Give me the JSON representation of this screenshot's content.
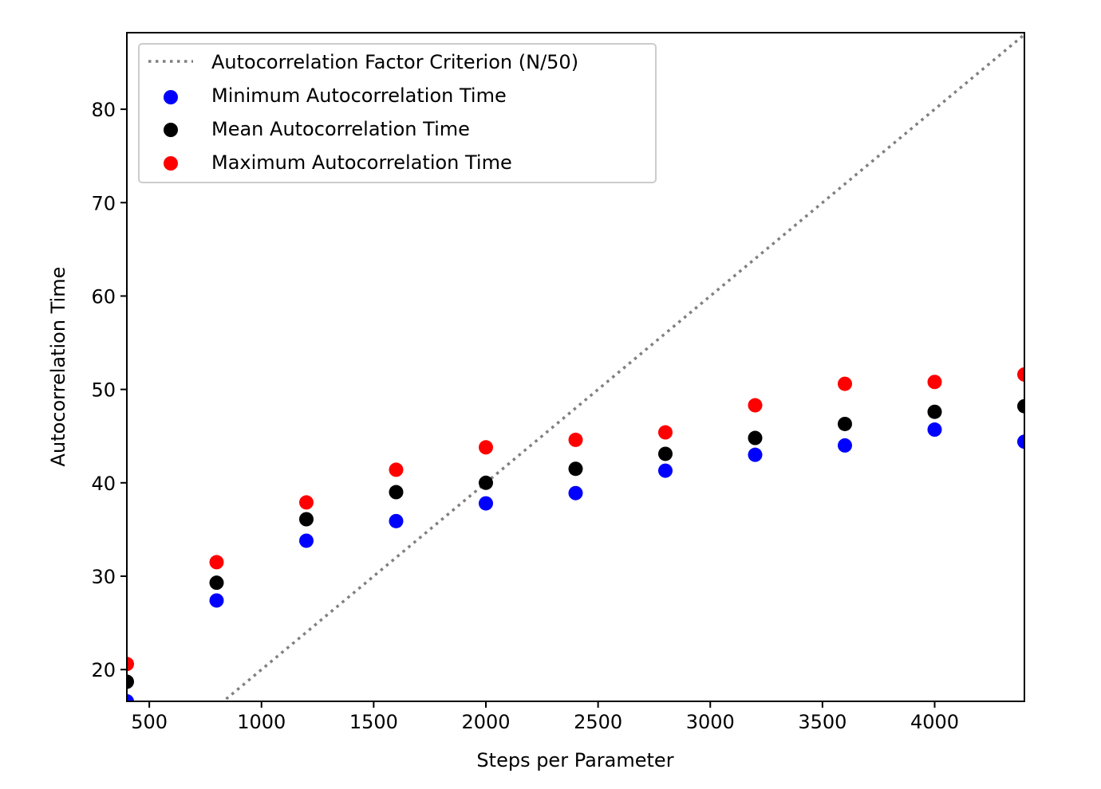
{
  "chart_data": {
    "type": "scatter",
    "xlabel": "Steps per Parameter",
    "ylabel": "Autocorrelation Time",
    "xlim": [
      400,
      4400
    ],
    "ylim": [
      16.6,
      88.2
    ],
    "x_ticks": [
      500,
      1000,
      1500,
      2000,
      2500,
      3000,
      3500,
      4000
    ],
    "y_ticks": [
      20,
      30,
      40,
      50,
      60,
      70,
      80
    ],
    "grid": false,
    "legend_position": "top-left",
    "reference_line": {
      "name": "Autocorrelation Factor Criterion (N/50)",
      "slope": 0.02,
      "style": "dotted",
      "color": "#808080"
    },
    "x": [
      400,
      800,
      1200,
      1600,
      2000,
      2400,
      2800,
      3200,
      3600,
      4000,
      4400
    ],
    "series": [
      {
        "name": "Minimum Autocorrelation Time",
        "color": "#0000ff",
        "values": [
          16.6,
          27.4,
          33.8,
          35.9,
          37.8,
          38.9,
          41.3,
          43.0,
          44.0,
          45.7,
          44.4
        ]
      },
      {
        "name": "Mean Autocorrelation Time",
        "color": "#000000",
        "values": [
          18.7,
          29.3,
          36.1,
          39.0,
          40.0,
          41.5,
          43.1,
          44.8,
          46.3,
          47.6,
          48.2
        ]
      },
      {
        "name": "Maximum Autocorrelation Time",
        "color": "#ff0000",
        "values": [
          20.6,
          31.5,
          37.9,
          41.4,
          43.8,
          44.6,
          45.4,
          48.3,
          50.6,
          50.8,
          51.6
        ]
      }
    ]
  }
}
